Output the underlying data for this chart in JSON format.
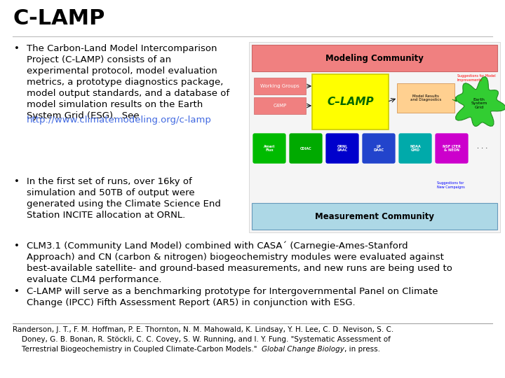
{
  "title": "C-LAMP",
  "title_fontsize": 22,
  "title_fontweight": "bold",
  "background_color": "#ffffff",
  "bullet_fontsize": 9.5,
  "bullet1_lines": "The Carbon-Land Model Intercomparison\nProject (C-LAMP) consists of an\nexperimental protocol, model evaluation\nmetrics, a prototype diagnostics package,\nmodel output standards, and a database of\nmodel simulation results on the Earth\nSystem Grid (ESG).  See",
  "bullet1_link": "http://www.climatemodeling.org/c-lamp",
  "bullet2_lines": "In the first set of runs, over 16ky of\nsimulation and 50TB of output were\ngenerated using the Climate Science End\nStation INCITE allocation at ORNL.",
  "bullet3_lines": "CLM3.1 (Community Land Model) combined with CASA´ (Carnegie-Ames-Stanford\nApproach) and CN (carbon & nitrogen) biogeochemistry modules were evaluated against\nbest-available satellite- and ground-based measurements, and new runs are being used to\nevaluate CLM4 performance.",
  "bullet4_lines": "C-LAMP will serve as a benchmarking prototype for Intergovernmental Panel on Climate\nChange (IPCC) Fifth Assessment Report (AR5) in conjunction with ESG.",
  "footer_line1": "Randerson, J. T., F. M. Hoffman, P. E. Thornton, N. M. Mahowald, K. Lindsay, Y. H. Lee, C. D. Nevison, S. C.",
  "footer_line2": "    Doney, G. B. Bonan, R. Stöckli, C. C. Covey, S. W. Running, and I. Y. Fung. \"Systematic Assessment of",
  "footer_line3_normal": "    Terrestrial Biogeochemistry in Coupled Climate-Carbon Models.\"  ",
  "footer_line3_italic": "Global Change Biology",
  "footer_line3_end": ", in press.",
  "footer_fontsize": 7.5,
  "mc_color": "#f08080",
  "meas_color": "#add8e6",
  "clamp_color": "#ffff00",
  "esg_color": "#32cd32",
  "wg_color": "#f08080",
  "c4mp_color": "#f08080",
  "diag_color": "#ffa500",
  "link_color": "#4169e1"
}
